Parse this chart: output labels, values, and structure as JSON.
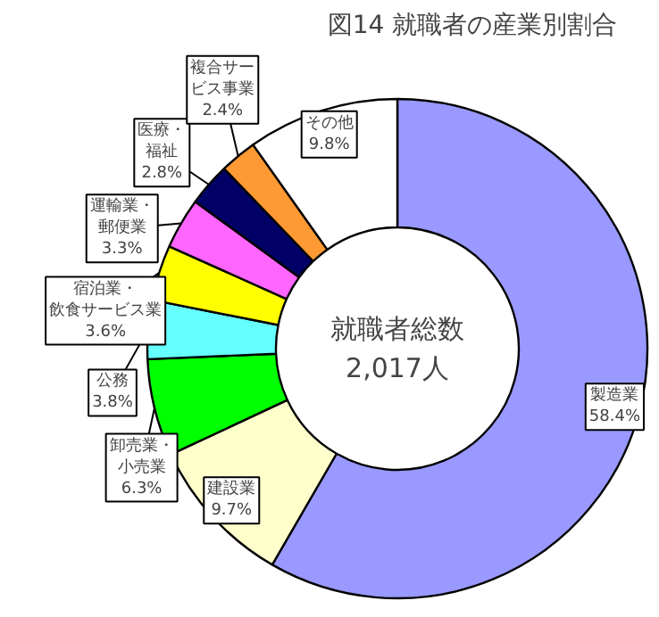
{
  "chart_data": {
    "type": "donut",
    "title": "図14 就職者の産業別割合",
    "categories": [
      "製造業",
      "建設業",
      "卸売業・小売業",
      "公務",
      "宿泊業・飲食サービス業",
      "運輸業・郵便業",
      "医療・福祉",
      "複合サービス事業",
      "その他"
    ],
    "values": [
      58.4,
      9.7,
      6.3,
      3.8,
      3.6,
      3.3,
      2.8,
      2.4,
      9.8
    ],
    "colors": [
      "#9999ff",
      "#ffffcc",
      "#00ff00",
      "#66ffff",
      "#ffff00",
      "#ff66ff",
      "#000066",
      "#ff9933",
      "#ffffff"
    ],
    "value_labels": [
      "58.4%",
      "9.7%",
      "6.3%",
      "3.8%",
      "3.6%",
      "3.3%",
      "2.8%",
      "2.4%",
      "9.8%"
    ],
    "annotations": [
      "就職者総数",
      "2,017人"
    ]
  }
}
